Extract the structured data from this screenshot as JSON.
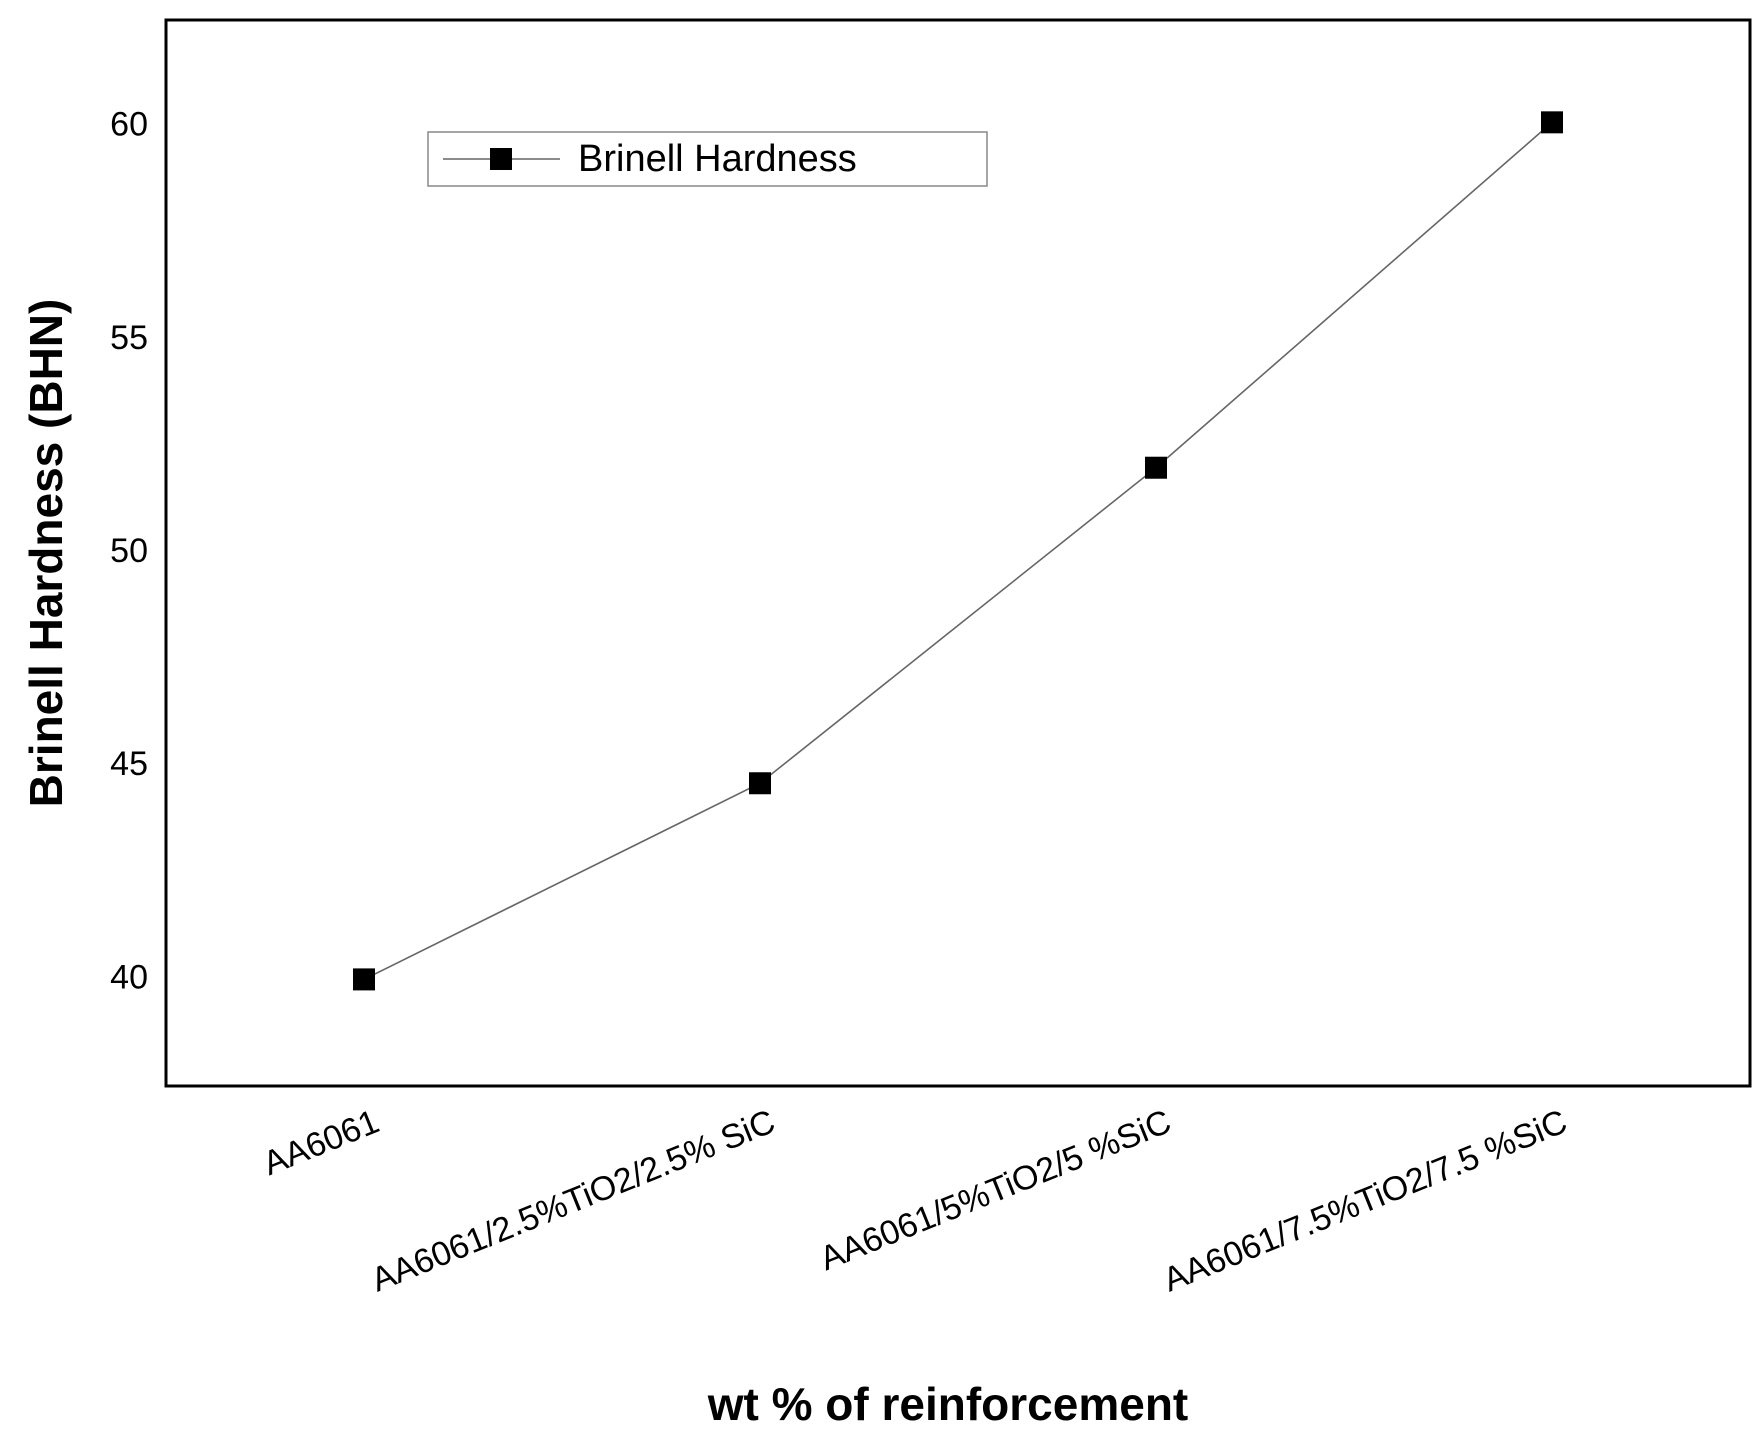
{
  "chart_data": {
    "type": "line",
    "x_label": "wt % of reinforcement",
    "y_label": "Brinell Hardness (BHN)",
    "categories": [
      "AA6061",
      "AA6061/2.5%TiO2/2.5% SiC",
      "AA6061/5%TiO2/5 %SiC",
      "AA6061/7.5%TiO2/7.5 %SiC"
    ],
    "series": [
      {
        "name": "Brinell Hardness",
        "color": "#000000",
        "values": [
          40,
          44.6,
          52,
          60.1
        ]
      }
    ],
    "ylim": [
      37.5,
      62.5
    ],
    "yticks": [
      40,
      45,
      50,
      55,
      60
    ],
    "grid": false,
    "legend": "top-left"
  }
}
